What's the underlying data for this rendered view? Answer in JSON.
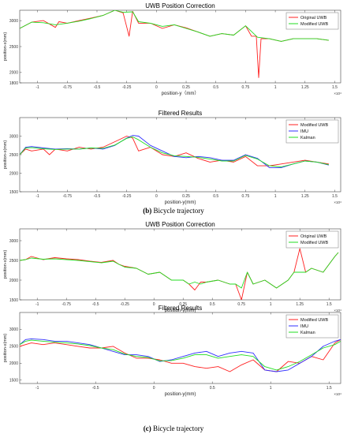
{
  "captions": [
    {
      "label": "(b)",
      "text": " Bicycle trajectory"
    },
    {
      "label": "(c)",
      "text": " Bicycle trajectory"
    }
  ],
  "colors": {
    "red": "#ff2020",
    "green": "#22dd22",
    "blue": "#3030ff"
  },
  "chart_data": [
    {
      "type": "line",
      "title": "UWB Position Correction",
      "xlabel": "position-y（mm）",
      "ylabel": "position-x(mm)",
      "x_exponent": "×10⁴",
      "xlim": [
        -1.15,
        1.55
      ],
      "ylim": [
        1800,
        3200
      ],
      "xticks": [
        -1,
        -0.75,
        -0.5,
        -0.25,
        0,
        0.25,
        0.5,
        0.75,
        1,
        1.25,
        1.5
      ],
      "xtick_labels": [
        "-1",
        "-0.75",
        "-0.5",
        "-0.25",
        "0",
        "0.25",
        "0.5",
        "0.75",
        "1",
        "1.25",
        "1.5"
      ],
      "yticks": [
        1800,
        2000,
        2500,
        3000
      ],
      "ytick_labels": [
        "1800",
        "2000",
        "2500",
        "3000"
      ],
      "legend": "top-right",
      "grid": false,
      "series": [
        {
          "name": "Original  UWB",
          "color": "#ff2020",
          "x": [
            -1.15,
            -1.05,
            -0.95,
            -0.85,
            -0.82,
            -0.75,
            -0.65,
            -0.55,
            -0.45,
            -0.35,
            -0.28,
            -0.23,
            -0.2,
            -0.15,
            -0.05,
            0.05,
            0.15,
            0.25,
            0.35,
            0.45,
            0.55,
            0.65,
            0.75,
            0.8,
            0.84,
            0.86,
            0.88,
            0.95,
            1.05,
            1.15,
            1.25,
            1.35,
            1.45
          ],
          "y": [
            2850,
            2970,
            3000,
            2870,
            2980,
            2950,
            3000,
            3050,
            3100,
            3200,
            3150,
            2700,
            3180,
            2950,
            2950,
            2850,
            2920,
            2860,
            2780,
            2700,
            2750,
            2720,
            2900,
            2700,
            2700,
            1900,
            2650,
            2650,
            2600,
            2650,
            2650,
            2650,
            2620
          ]
        },
        {
          "name": "Modified UWB",
          "color": "#22dd22",
          "x": [
            -1.15,
            -1.05,
            -0.95,
            -0.85,
            -0.75,
            -0.65,
            -0.55,
            -0.45,
            -0.35,
            -0.28,
            -0.2,
            -0.15,
            -0.05,
            0.05,
            0.15,
            0.25,
            0.35,
            0.45,
            0.55,
            0.65,
            0.75,
            0.85,
            0.95,
            1.05,
            1.15,
            1.25,
            1.35,
            1.45
          ],
          "y": [
            2850,
            2970,
            2960,
            2920,
            2950,
            2990,
            3040,
            3100,
            3200,
            3160,
            3170,
            2980,
            2950,
            2890,
            2920,
            2850,
            2780,
            2700,
            2750,
            2720,
            2900,
            2680,
            2650,
            2600,
            2650,
            2650,
            2650,
            2620
          ]
        }
      ]
    },
    {
      "type": "line",
      "title": "Filtered Results",
      "xlabel": "position-y(mm)",
      "ylabel": "position-x(mm)",
      "x_exponent": "×10⁴",
      "xlim": [
        -1.15,
        1.55
      ],
      "ylim": [
        1500,
        3500
      ],
      "xticks": [
        -1,
        -0.75,
        -0.5,
        -0.25,
        0,
        0.25,
        0.5,
        0.75,
        1,
        1.25,
        1.5
      ],
      "xtick_labels": [
        "-1",
        "-0.75",
        "-0.5",
        "-0.25",
        "0",
        "0.25",
        "0.5",
        "0.75",
        "1",
        "1.25",
        "1.5"
      ],
      "yticks": [
        1500,
        2000,
        2500,
        3000
      ],
      "ytick_labels": [
        "1500",
        "2000",
        "2500",
        "3000"
      ],
      "legend": "top-right",
      "grid": false,
      "series": [
        {
          "name": "Modified UWB",
          "color": "#ff2020",
          "x": [
            -1.15,
            -1.1,
            -1.05,
            -0.95,
            -0.9,
            -0.85,
            -0.75,
            -0.65,
            -0.55,
            -0.45,
            -0.35,
            -0.25,
            -0.2,
            -0.15,
            -0.05,
            0.05,
            0.15,
            0.25,
            0.35,
            0.45,
            0.55,
            0.65,
            0.75,
            0.85,
            0.95,
            1.05,
            1.15,
            1.25,
            1.35,
            1.45
          ],
          "y": [
            2500,
            2650,
            2600,
            2650,
            2500,
            2650,
            2600,
            2700,
            2650,
            2700,
            2850,
            3000,
            2950,
            2600,
            2700,
            2500,
            2450,
            2550,
            2400,
            2300,
            2350,
            2300,
            2450,
            2200,
            2200,
            2250,
            2300,
            2350,
            2300,
            2250
          ]
        },
        {
          "name": "IMU",
          "color": "#3030ff",
          "x": [
            -1.15,
            -1.1,
            -1.05,
            -0.95,
            -0.85,
            -0.75,
            -0.65,
            -0.55,
            -0.45,
            -0.35,
            -0.25,
            -0.2,
            -0.15,
            -0.05,
            0.05,
            0.15,
            0.25,
            0.35,
            0.45,
            0.55,
            0.65,
            0.75,
            0.85,
            0.95,
            1.05,
            1.15,
            1.25,
            1.35,
            1.45
          ],
          "y": [
            2500,
            2700,
            2720,
            2680,
            2650,
            2660,
            2650,
            2680,
            2650,
            2750,
            2950,
            3020,
            3000,
            2750,
            2600,
            2450,
            2420,
            2450,
            2420,
            2350,
            2350,
            2500,
            2400,
            2150,
            2150,
            2250,
            2330,
            2300,
            2220
          ]
        },
        {
          "name": "Kalman",
          "color": "#22dd22",
          "x": [
            -1.15,
            -1.1,
            -1.05,
            -0.95,
            -0.85,
            -0.75,
            -0.65,
            -0.55,
            -0.45,
            -0.35,
            -0.25,
            -0.2,
            -0.15,
            -0.05,
            0.05,
            0.15,
            0.25,
            0.35,
            0.45,
            0.55,
            0.65,
            0.75,
            0.85,
            0.95,
            1.05,
            1.15,
            1.25,
            1.35,
            1.45
          ],
          "y": [
            2500,
            2680,
            2690,
            2660,
            2640,
            2650,
            2650,
            2680,
            2670,
            2760,
            2940,
            2980,
            2900,
            2700,
            2550,
            2470,
            2450,
            2430,
            2380,
            2330,
            2330,
            2480,
            2380,
            2200,
            2170,
            2250,
            2330,
            2300,
            2230
          ]
        }
      ]
    },
    {
      "type": "line",
      "title": "UWB Position Correction",
      "xlabel": "position-y(mm)",
      "ylabel": "position-x(mm)",
      "x_exponent": "×10⁴",
      "xlim": [
        -1.15,
        1.6
      ],
      "ylim": [
        1500,
        3300
      ],
      "xticks": [
        -1,
        -0.75,
        -0.5,
        -0.25,
        0,
        0.25,
        0.5,
        0.75,
        1,
        1.25,
        1.5
      ],
      "xtick_labels": [
        "-1",
        "-0.75",
        "-0.5",
        "-0.25",
        "0",
        "0.25",
        "0.5",
        "0.75",
        "1",
        "1.25",
        "1.5"
      ],
      "yticks": [
        1500,
        2000,
        2500,
        3000
      ],
      "ytick_labels": [
        "1500",
        "2000",
        "2500",
        "3000"
      ],
      "legend": "top-right",
      "grid": false,
      "series": [
        {
          "name": "Original UWB",
          "color": "#ff2020",
          "x": [
            -1.15,
            -1.1,
            -1.05,
            -0.95,
            -0.85,
            -0.75,
            -0.65,
            -0.55,
            -0.45,
            -0.35,
            -0.3,
            -0.25,
            -0.15,
            -0.05,
            0.05,
            0.15,
            0.25,
            0.3,
            0.35,
            0.4,
            0.45,
            0.55,
            0.65,
            0.7,
            0.75,
            0.8,
            0.85,
            0.95,
            1.05,
            1.15,
            1.2,
            1.25,
            1.3,
            1.35,
            1.45,
            1.55,
            1.58
          ],
          "y": [
            2500,
            2520,
            2600,
            2520,
            2570,
            2540,
            2520,
            2480,
            2450,
            2500,
            2400,
            2350,
            2300,
            2150,
            2200,
            2000,
            2000,
            1900,
            1750,
            1950,
            1950,
            2000,
            1900,
            1900,
            1500,
            2200,
            1900,
            2000,
            1800,
            2000,
            2200,
            2800,
            2200,
            2300,
            2200,
            2600,
            2700
          ]
        },
        {
          "name": "Modified UWB",
          "color": "#22dd22",
          "x": [
            -1.15,
            -1.1,
            -1.05,
            -0.95,
            -0.85,
            -0.75,
            -0.65,
            -0.55,
            -0.45,
            -0.35,
            -0.3,
            -0.25,
            -0.15,
            -0.05,
            0.05,
            0.15,
            0.25,
            0.3,
            0.35,
            0.4,
            0.45,
            0.55,
            0.65,
            0.7,
            0.75,
            0.8,
            0.85,
            0.95,
            1.05,
            1.15,
            1.2,
            1.25,
            1.3,
            1.35,
            1.45,
            1.55,
            1.58
          ],
          "y": [
            2500,
            2520,
            2560,
            2530,
            2540,
            2520,
            2500,
            2470,
            2440,
            2480,
            2400,
            2330,
            2300,
            2150,
            2200,
            2000,
            2000,
            1900,
            1950,
            1900,
            1950,
            2000,
            1900,
            1900,
            1800,
            2200,
            1900,
            2000,
            1800,
            2000,
            2200,
            2200,
            2200,
            2300,
            2200,
            2600,
            2700
          ]
        }
      ]
    },
    {
      "type": "line",
      "title": "Filtered Results",
      "xlabel": "position-y(mm)",
      "ylabel": "position-x(mm)",
      "x_exponent": "×10⁴",
      "xlim": [
        -1.15,
        1.6
      ],
      "ylim": [
        1400,
        3500
      ],
      "xticks": [
        -1,
        -0.5,
        0,
        0.5,
        1,
        1.5
      ],
      "xtick_labels": [
        "-1",
        "-0.5",
        "0",
        "0.5",
        "1",
        "1.5"
      ],
      "yticks": [
        1500,
        2000,
        2500,
        3000
      ],
      "ytick_labels": [
        "1500",
        "2000",
        "2500",
        "3000"
      ],
      "legend": "top-right",
      "grid": false,
      "series": [
        {
          "name": "Modified UWB",
          "color": "#ff2020",
          "x": [
            -1.15,
            -1.1,
            -1.05,
            -0.95,
            -0.85,
            -0.75,
            -0.65,
            -0.55,
            -0.45,
            -0.35,
            -0.25,
            -0.15,
            -0.05,
            0.05,
            0.15,
            0.25,
            0.35,
            0.45,
            0.55,
            0.65,
            0.75,
            0.85,
            0.95,
            1.05,
            1.15,
            1.25,
            1.35,
            1.45,
            1.55,
            1.6
          ],
          "y": [
            2500,
            2550,
            2600,
            2550,
            2600,
            2550,
            2500,
            2450,
            2450,
            2500,
            2300,
            2150,
            2150,
            2100,
            2000,
            2000,
            1900,
            1850,
            1900,
            1750,
            1950,
            2100,
            1800,
            1750,
            2050,
            2000,
            2200,
            2100,
            2600,
            2700
          ]
        },
        {
          "name": "IMU",
          "color": "#3030ff",
          "x": [
            -1.15,
            -1.1,
            -1.05,
            -0.95,
            -0.85,
            -0.75,
            -0.65,
            -0.55,
            -0.45,
            -0.35,
            -0.25,
            -0.15,
            -0.05,
            0.05,
            0.15,
            0.25,
            0.35,
            0.45,
            0.55,
            0.65,
            0.75,
            0.85,
            0.95,
            1.05,
            1.15,
            1.25,
            1.35,
            1.45,
            1.55,
            1.6
          ],
          "y": [
            2550,
            2700,
            2720,
            2700,
            2650,
            2650,
            2600,
            2550,
            2450,
            2350,
            2250,
            2250,
            2200,
            2050,
            2100,
            2200,
            2300,
            2350,
            2200,
            2300,
            2350,
            2300,
            1800,
            1750,
            1800,
            2000,
            2200,
            2500,
            2650,
            2700
          ]
        },
        {
          "name": "Kalman",
          "color": "#22dd22",
          "x": [
            -1.15,
            -1.1,
            -1.05,
            -0.95,
            -0.85,
            -0.75,
            -0.65,
            -0.55,
            -0.45,
            -0.35,
            -0.25,
            -0.15,
            -0.05,
            0.05,
            0.15,
            0.25,
            0.35,
            0.45,
            0.55,
            0.65,
            0.75,
            0.85,
            0.95,
            1.05,
            1.15,
            1.25,
            1.35,
            1.45,
            1.55,
            1.6
          ],
          "y": [
            2550,
            2650,
            2680,
            2650,
            2620,
            2600,
            2570,
            2520,
            2450,
            2400,
            2270,
            2200,
            2170,
            2070,
            2080,
            2150,
            2250,
            2250,
            2150,
            2200,
            2250,
            2200,
            1900,
            1800,
            1900,
            2050,
            2250,
            2450,
            2550,
            2650
          ]
        }
      ]
    }
  ]
}
